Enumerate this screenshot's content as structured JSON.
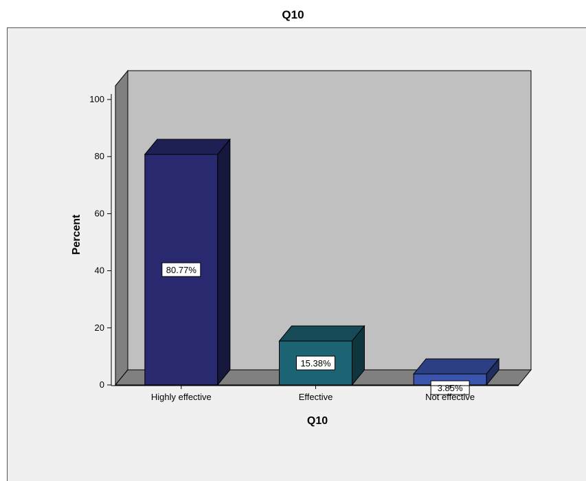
{
  "chart_data": {
    "type": "bar",
    "title": "Q10",
    "xlabel": "Q10",
    "ylabel": "Percent",
    "categories": [
      "Highly effective",
      "Effective",
      "Not effective"
    ],
    "values": [
      80.77,
      15.38,
      3.85
    ],
    "data_labels": [
      "80.77%",
      "15.38%",
      "3.85%"
    ],
    "ylim": [
      0,
      100
    ],
    "yticks": [
      0,
      20,
      40,
      60,
      80,
      100
    ],
    "style": "3d",
    "colors": [
      "#28296e",
      "#1c6373",
      "#3b54ad"
    ],
    "wall_color": "#c0c0c0",
    "floor_color": "#808080",
    "background_color": "#f0f0f0",
    "grid": false,
    "legend": "none"
  }
}
